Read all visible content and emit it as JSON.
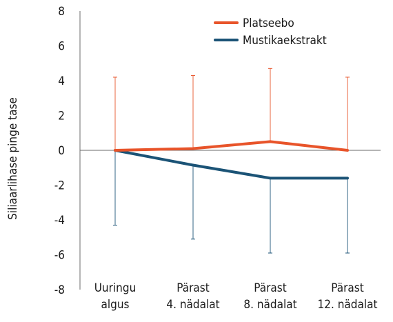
{
  "chart_data": {
    "type": "line",
    "ylabel": "Siliaarlihase pinge tase",
    "xlabel": "",
    "ylim": [
      -8,
      8
    ],
    "yticks": [
      8,
      6,
      4,
      2,
      0,
      -2,
      -4,
      -6,
      -8
    ],
    "categories": [
      [
        "Uuringu",
        "algus"
      ],
      [
        "Pärast",
        "4. nädalat"
      ],
      [
        "Pärast",
        "8. nädalat"
      ],
      [
        "Pärast",
        "12. nädalat"
      ]
    ],
    "series": [
      {
        "name": "Platseebo",
        "color": "#e8542a",
        "values": [
          0,
          0.1,
          0.5,
          0
        ],
        "error_upper": [
          4.2,
          4.3,
          4.7,
          4.2
        ]
      },
      {
        "name": "Mustikaekstrakt",
        "color": "#1b5376",
        "values": [
          0,
          -0.85,
          -1.6,
          -1.6
        ],
        "error_lower": [
          -4.3,
          -5.1,
          -5.9,
          -5.9
        ]
      }
    ],
    "legend": "top-right",
    "grid": false
  }
}
